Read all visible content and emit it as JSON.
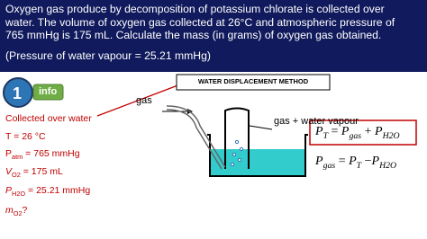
{
  "header": {
    "lines": [
      "Oxygen gas produce by decomposition of potassium chlorate is collected over",
      "water. The volume of oxygen gas collected at 26°C and atmospheric pressure of",
      "765 mmHg is 175 mL. Calculate the mass (in grams) of oxygen gas obtained."
    ],
    "note": "(Pressure of water vapour = 25.21 mmHg)"
  },
  "badge": {
    "number": "1",
    "label": "info"
  },
  "given": {
    "heading": "Collected over water",
    "items": [
      {
        "symbol": "T",
        "rest": " = 26 °C"
      },
      {
        "symbol": "P",
        "sub": "atm",
        "rest": " = 765 mmHg"
      },
      {
        "symbol": "V",
        "sub": "O2",
        "rest": " = 175 mL"
      },
      {
        "symbol": "P",
        "sub": "H2O",
        "rest": " = 25.21 mmHg"
      },
      {
        "symbol": "m",
        "sub": "O2",
        "rest": "?"
      }
    ]
  },
  "diagram": {
    "title": "WATER DISPLACEMENT METHOD",
    "gas_label": "gas",
    "collected_label": "gas + water vapour",
    "equations": [
      [
        {
          "symbol": "P",
          "sub": "T"
        },
        {
          "op": " = "
        },
        {
          "symbol": "P",
          "sub": "gas"
        },
        {
          "op": " + "
        },
        {
          "symbol": "P",
          "sub": "H2O"
        }
      ],
      [
        {
          "symbol": "P",
          "sub": "gas"
        },
        {
          "op": " = "
        },
        {
          "symbol": "P",
          "sub": "T"
        },
        {
          "op": " −"
        },
        {
          "symbol": "P",
          "sub": "H2O"
        }
      ]
    ]
  }
}
